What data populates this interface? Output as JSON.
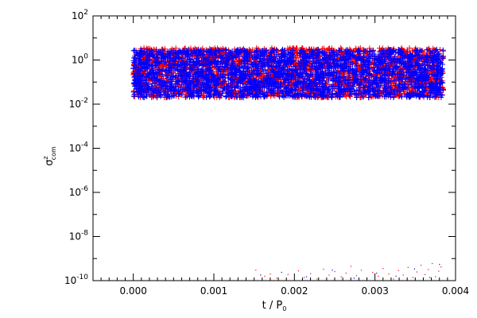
{
  "chart_data": {
    "type": "scatter",
    "title": "",
    "xlabel": "t / P",
    "xlabel_sub": "0",
    "ylabel": "σ",
    "ylabel_sup": "z",
    "ylabel_sub": "com",
    "xlim": [
      -0.0005,
      0.004
    ],
    "ylim": [
      1e-10,
      100
    ],
    "yscale": "log",
    "grid": false,
    "legend": "none",
    "x_ticks": [
      0.0,
      0.001,
      0.002,
      0.003,
      0.004
    ],
    "x_tick_labels": [
      "0.000",
      "0.001",
      "0.002",
      "0.003",
      "0.004"
    ],
    "y_ticks": [
      -10,
      -8,
      -6,
      -4,
      -2,
      0,
      2
    ],
    "y_tick_base": "10",
    "y_tick_exponents": [
      "-10",
      "-8",
      "-6",
      "-4",
      "-2",
      "0",
      "2"
    ],
    "series": [
      {
        "color": "#ff0000",
        "marker": "plus",
        "band": {
          "x_range": [
            0.0,
            0.00385
          ],
          "y_range": [
            0.02,
            3.5
          ]
        },
        "sparse_points": [
          [
            0.00152,
            3e-10
          ],
          [
            0.00163,
            1.6e-10
          ],
          [
            0.0017,
            2e-10
          ],
          [
            0.00178,
            1.3e-10
          ],
          [
            0.00192,
            1.9e-10
          ],
          [
            0.00205,
            2.8e-10
          ],
          [
            0.00212,
            1.4e-10
          ],
          [
            0.0022,
            2.1e-10
          ],
          [
            0.00228,
            1.2e-10
          ],
          [
            0.00236,
            3.3e-10
          ],
          [
            0.00243,
            1.8e-10
          ],
          [
            0.0025,
            2.6e-10
          ],
          [
            0.00258,
            1.5e-10
          ],
          [
            0.00264,
            2.2e-10
          ],
          [
            0.0027,
            4.5e-10
          ],
          [
            0.00277,
            1.7e-10
          ],
          [
            0.00283,
            3e-10
          ],
          [
            0.0029,
            1.3e-10
          ],
          [
            0.00297,
            2.4e-10
          ],
          [
            0.00304,
            1.6e-10
          ],
          [
            0.0031,
            3.6e-10
          ],
          [
            0.00317,
            2e-10
          ],
          [
            0.00323,
            1.2e-10
          ],
          [
            0.00329,
            2.9e-10
          ],
          [
            0.00335,
            1.8e-10
          ],
          [
            0.00341,
            4e-10
          ],
          [
            0.00347,
            1.4e-10
          ],
          [
            0.00352,
            2.5e-10
          ],
          [
            0.00357,
            5e-10
          ],
          [
            0.00362,
            1.9e-10
          ],
          [
            0.00366,
            3.2e-10
          ],
          [
            0.00371,
            6e-10
          ],
          [
            0.00375,
            1.5e-10
          ],
          [
            0.00379,
            2.7e-10
          ],
          [
            0.00382,
            4.2e-10
          ]
        ]
      },
      {
        "color": "#0000ff",
        "marker": "plus",
        "band": {
          "x_range": [
            0.0,
            0.00385
          ],
          "y_range": [
            0.02,
            3.0
          ]
        },
        "sparse_points": [
          [
            0.00158,
            1.8e-10
          ],
          [
            0.00184,
            2.4e-10
          ],
          [
            0.00215,
            1.5e-10
          ],
          [
            0.00247,
            3e-10
          ],
          [
            0.00274,
            1.3e-10
          ],
          [
            0.00302,
            2.2e-10
          ],
          [
            0.00326,
            1.6e-10
          ],
          [
            0.00349,
            3.4e-10
          ],
          [
            0.00368,
            1.4e-10
          ],
          [
            0.0038,
            5.5e-10
          ]
        ]
      }
    ]
  }
}
